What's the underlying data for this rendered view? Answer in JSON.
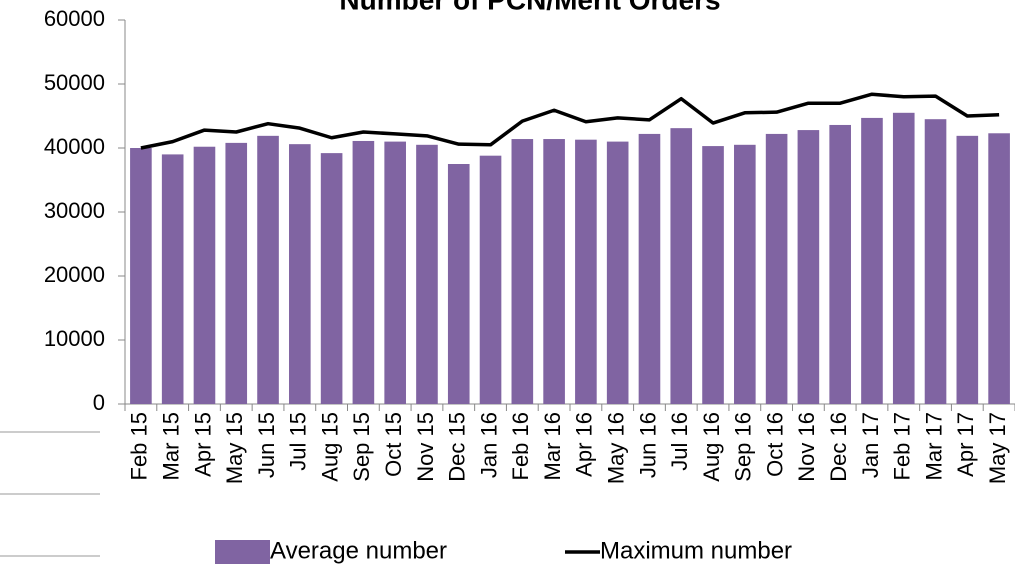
{
  "chart_data": {
    "type": "bar",
    "title": "Number of PCN/Merit Orders",
    "categories": [
      "Feb 15",
      "Mar 15",
      "Apr 15",
      "May 15",
      "Jun 15",
      "Jul 15",
      "Aug 15",
      "Sep 15",
      "Oct 15",
      "Nov 15",
      "Dec 15",
      "Jan 16",
      "Feb 16",
      "Mar 16",
      "Apr 16",
      "May 16",
      "Jun 16",
      "Jul 16",
      "Aug 16",
      "Sep 16",
      "Oct 16",
      "Nov 16",
      "Dec 16",
      "Jan 17",
      "Feb 17",
      "Mar 17",
      "Apr 17",
      "May 17"
    ],
    "series": [
      {
        "name": "Average number",
        "type": "bar",
        "color": "#8064a2",
        "values": [
          40000,
          39000,
          40200,
          40800,
          41900,
          40600,
          39200,
          41100,
          41000,
          40500,
          37500,
          38800,
          41400,
          41400,
          41300,
          41000,
          42200,
          43100,
          40300,
          40500,
          42200,
          42800,
          43600,
          44700,
          45500,
          44500,
          41900,
          42300
        ]
      },
      {
        "name": "Maximum number",
        "type": "line",
        "color": "#000000",
        "values": [
          40000,
          41000,
          42800,
          42500,
          43800,
          43100,
          41600,
          42500,
          42200,
          41900,
          40600,
          40500,
          44200,
          45900,
          44100,
          44700,
          44400,
          47700,
          43900,
          45500,
          45600,
          47000,
          47000,
          48400,
          48000,
          48100,
          45000,
          45200
        ]
      }
    ],
    "ylim": [
      0,
      60000
    ],
    "yticks": [
      0,
      10000,
      20000,
      30000,
      40000,
      50000,
      60000
    ],
    "legend": "bottom"
  }
}
